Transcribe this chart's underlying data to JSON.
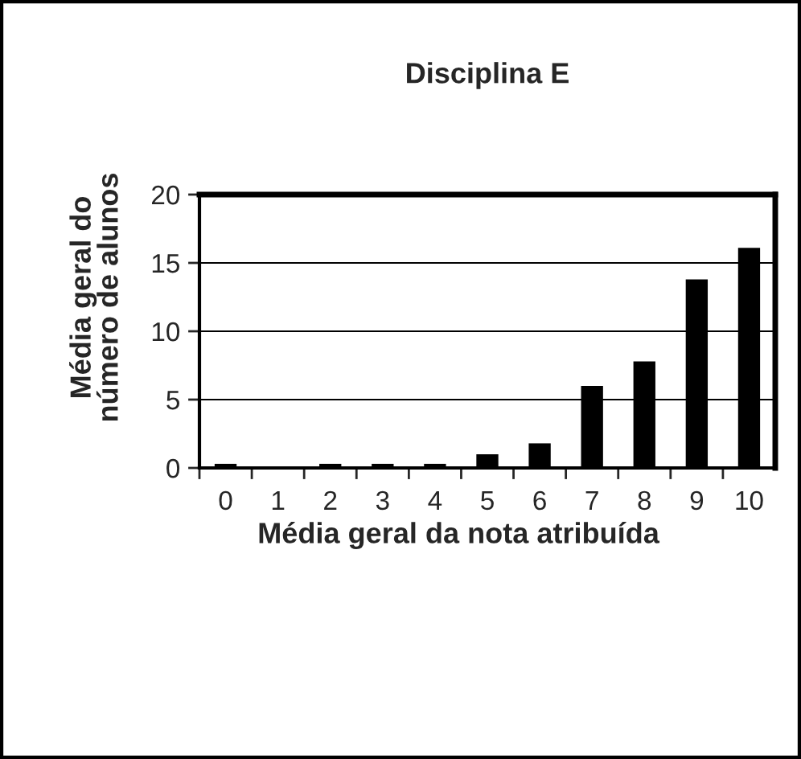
{
  "chart_data": {
    "type": "bar",
    "title": "Disciplina E",
    "xlabel": "Média geral da nota atribuída",
    "ylabel": "Média geral do\nnúmero de alunos",
    "categories": [
      "0",
      "1",
      "2",
      "3",
      "4",
      "5",
      "6",
      "7",
      "8",
      "9",
      "10"
    ],
    "values": [
      0.3,
      0,
      0.3,
      0.3,
      0.3,
      1.0,
      1.8,
      6.0,
      7.8,
      13.8,
      16.1
    ],
    "color": "#000000",
    "ylim": [
      0,
      20
    ],
    "yticks": [
      0,
      5,
      10,
      15,
      20
    ],
    "grid": "y"
  }
}
